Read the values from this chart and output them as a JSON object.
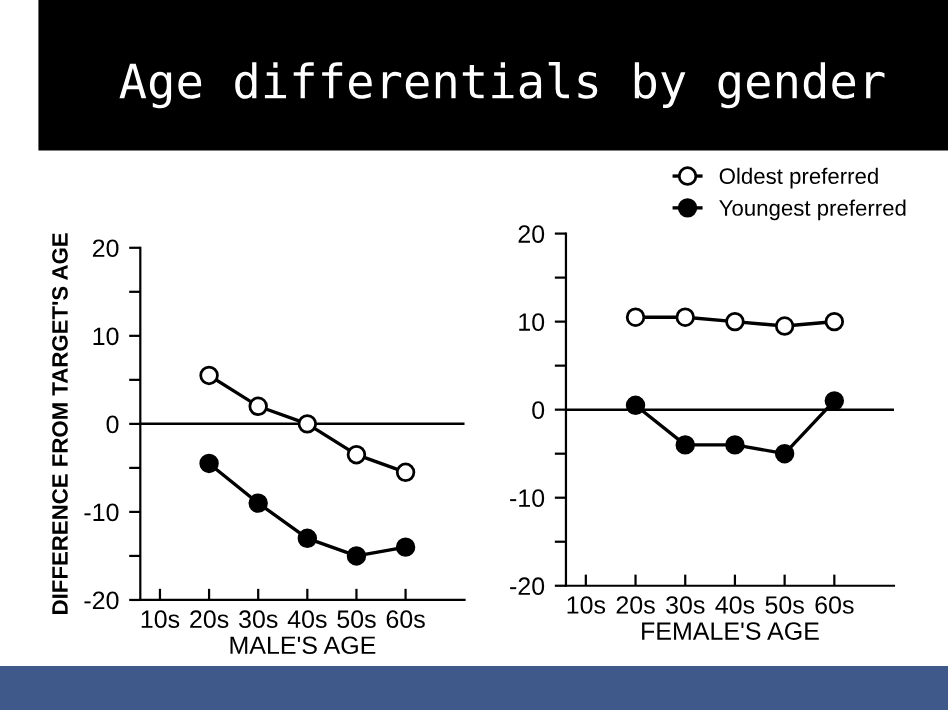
{
  "chart_data": [
    {
      "type": "line",
      "title": "Age differentials by gender",
      "xlabel": "MALE'S AGE",
      "ylabel": "DIFFERENCE FROM TARGET'S AGE",
      "categories": [
        "10s",
        "20s",
        "30s",
        "40s",
        "50s",
        "60s"
      ],
      "series": [
        {
          "color": "#000000",
          "values": [
            null,
            5.5,
            2,
            0,
            -3.5,
            -5.5
          ]
        },
        {
          "color": "#000000",
          "values": [
            null,
            -4.5,
            -9,
            -13,
            -15,
            -14
          ]
        }
      ],
      "ylim": [
        -20,
        20
      ],
      "yticks": [
        -20,
        {
          "value": -15,
          "label": null
        },
        -10,
        {
          "value": -5,
          "label": null
        },
        0,
        {
          "value": 5,
          "label": null
        },
        10,
        {
          "value": 15,
          "label": null
        },
        20
      ],
      "ref_lines": [
        {
          "axis": "y",
          "value": 0,
          "color": "#000000"
        }
      ],
      "marker": "circle",
      "line_style": "solid",
      "grid": false,
      "legend": false
    },
    {
      "type": "line",
      "xlabel": "FEMALE'S AGE",
      "categories": [
        "10s",
        "20s",
        "30s",
        "40s",
        "50s",
        "60s"
      ],
      "series": [
        {
          "name": "Oldest preferred",
          "color": "#000000",
          "values": [
            null,
            10.5,
            10.5,
            10,
            9.5,
            10
          ]
        },
        {
          "name": "Youngest preferred",
          "color": "#000000",
          "values": [
            null,
            0.5,
            -4,
            -4,
            -5,
            1
          ]
        }
      ],
      "ylim": [
        -20,
        20
      ],
      "yticks": [
        -20,
        {
          "value": -15,
          "label": null
        },
        -10,
        {
          "value": -5,
          "label": null
        },
        0,
        {
          "value": 5,
          "label": null
        },
        10,
        {
          "value": 15,
          "label": null
        },
        20
      ],
      "ref_lines": [
        {
          "axis": "y",
          "value": 0,
          "color": "#000000"
        }
      ],
      "marker": "circle",
      "line_style": "solid",
      "grid": false,
      "legend": "top right"
    }
  ]
}
